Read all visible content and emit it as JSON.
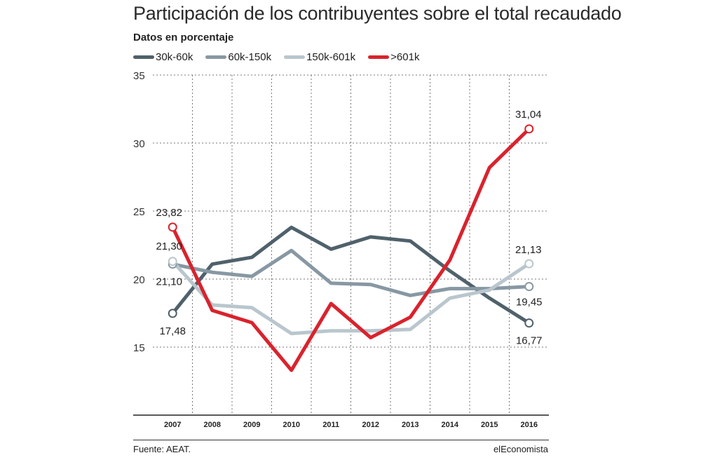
{
  "title": "Participación de los contribuyentes sobre el total recaudado",
  "subtitle": "Datos en porcentaje",
  "source": "Fuente: AEAT.",
  "brand": "elEconomista",
  "chart_data": {
    "type": "line",
    "x": [
      "2007",
      "2008",
      "2009",
      "2010",
      "2011",
      "2012",
      "2013",
      "2014",
      "2015",
      "2016"
    ],
    "ylim": [
      10,
      35
    ],
    "yticks": [
      15,
      20,
      25,
      30,
      35
    ],
    "grid": true,
    "legend_position": "top-left",
    "series": [
      {
        "name": "30k-60k",
        "color": "#4f616b",
        "values": [
          17.48,
          21.1,
          21.6,
          23.8,
          22.2,
          23.1,
          22.8,
          20.6,
          18.6,
          16.77
        ],
        "labels": {
          "0": "17,48",
          "9": "16,77"
        }
      },
      {
        "name": "60k-150k",
        "color": "#8798a3",
        "values": [
          21.1,
          20.5,
          20.2,
          22.1,
          19.7,
          19.6,
          18.8,
          19.3,
          19.3,
          19.45
        ],
        "labels": {
          "0": "21,10",
          "9": "19,45"
        }
      },
      {
        "name": "150k-601k",
        "color": "#b9c6cd",
        "values": [
          21.3,
          18.1,
          17.9,
          16.0,
          16.2,
          16.2,
          16.3,
          18.6,
          19.2,
          21.13
        ],
        "labels": {
          "0": "21,30",
          "9": "21,13"
        }
      },
      {
        "name": ">601k",
        "color": "#d9232d",
        "values": [
          23.82,
          17.7,
          16.8,
          13.3,
          18.2,
          15.7,
          17.2,
          21.4,
          28.2,
          31.04
        ],
        "labels": {
          "0": "23,82",
          "9": "31,04"
        }
      }
    ]
  }
}
